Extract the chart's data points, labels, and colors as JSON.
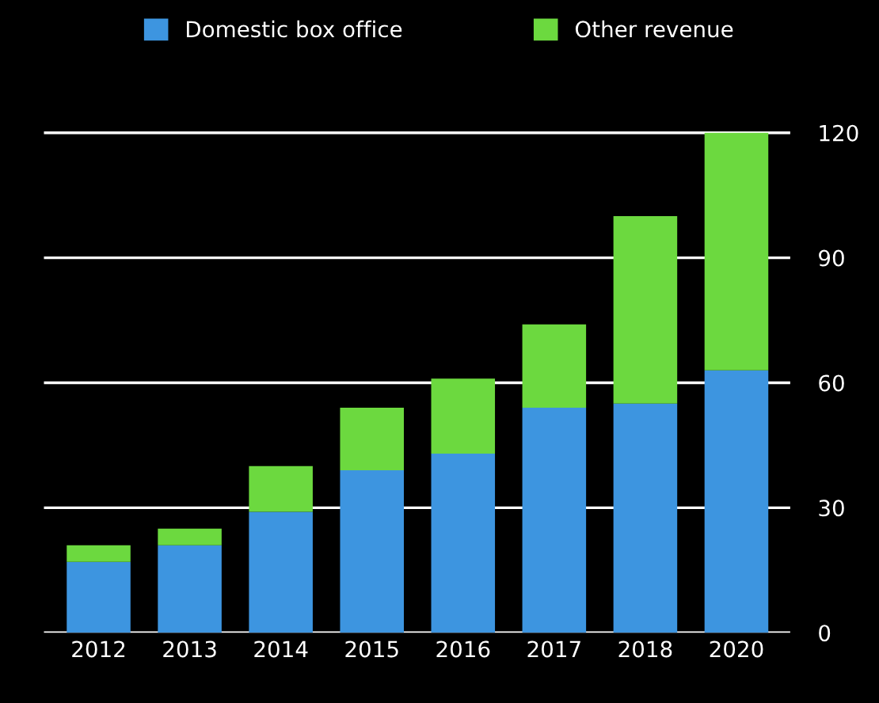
{
  "chart_data": {
    "type": "bar",
    "stacked": true,
    "categories": [
      "2012",
      "2013",
      "2014",
      "2015",
      "2016",
      "2017",
      "2018",
      "2020"
    ],
    "series": [
      {
        "name": "Domestic box office",
        "color": "#3d95e0",
        "values": [
          17,
          21,
          29,
          39,
          43,
          54,
          55,
          63
        ]
      },
      {
        "name": "Other revenue",
        "color": "#6cd93f",
        "values": [
          4,
          4,
          11,
          15,
          18,
          20,
          45,
          57
        ]
      }
    ],
    "ylim": [
      0,
      135
    ],
    "yticks": [
      0,
      30,
      60,
      90,
      120
    ],
    "grid": "y",
    "legend": "top"
  }
}
